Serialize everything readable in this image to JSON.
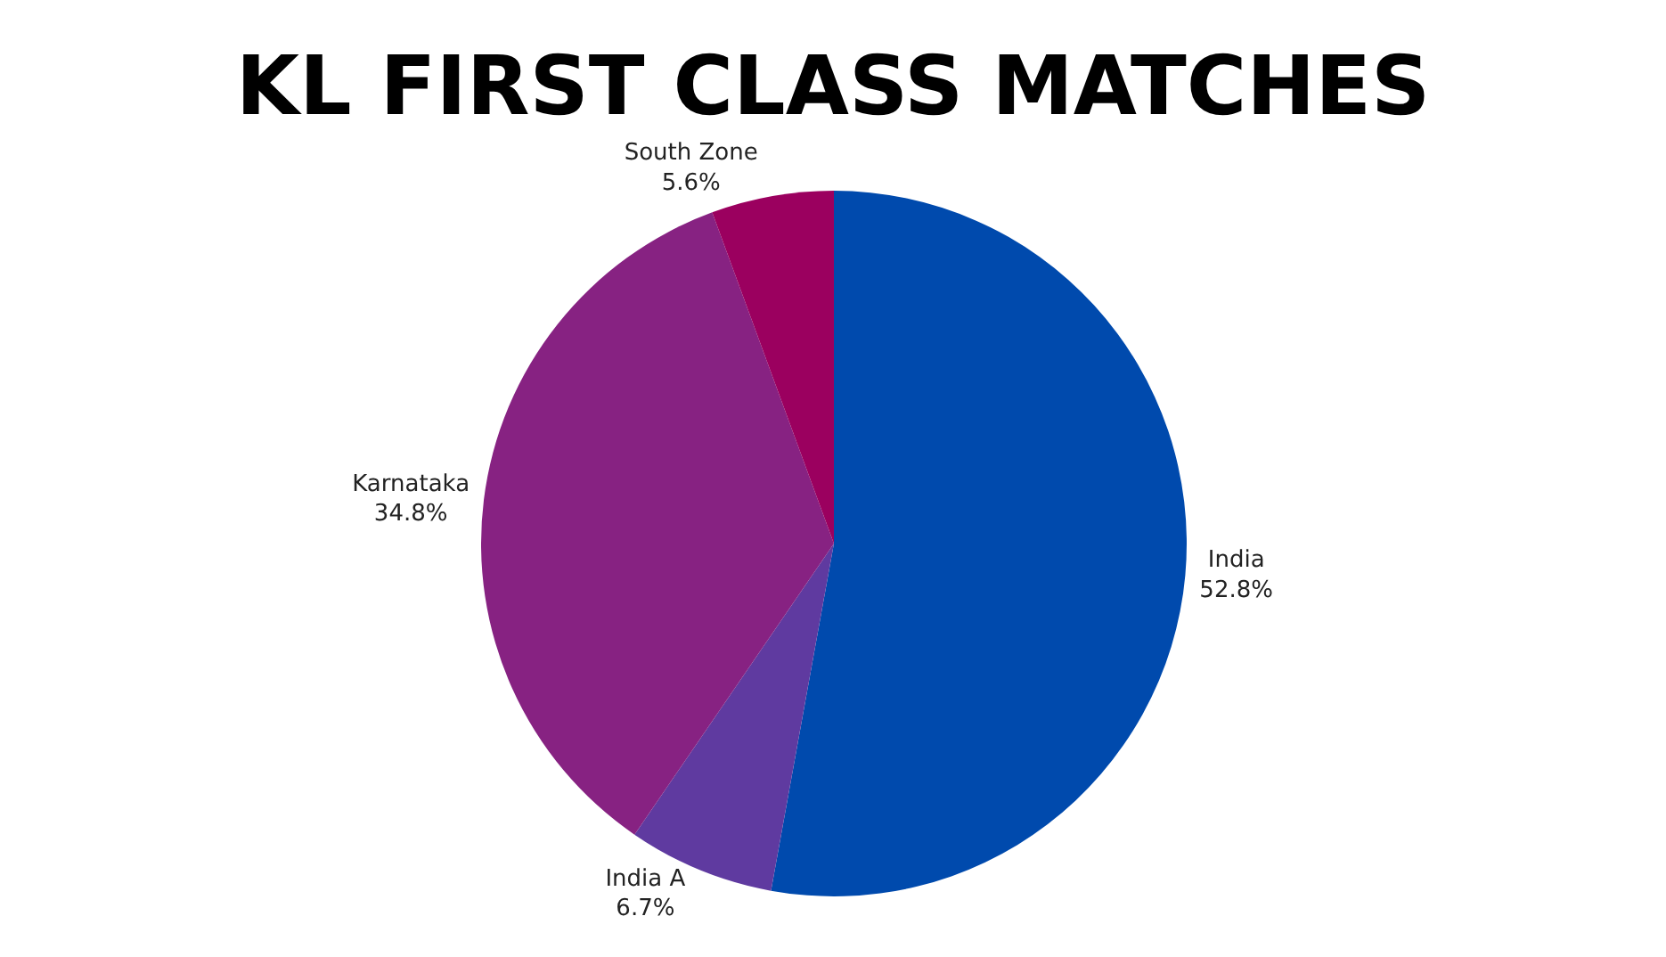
{
  "chart_data": {
    "type": "pie",
    "title": "KL FIRST CLASS MATCHES",
    "categories": [
      "India",
      "India A",
      "Karnataka",
      "South Zone"
    ],
    "values": [
      52.8,
      6.7,
      34.8,
      5.6
    ],
    "value_labels": [
      "52.8%",
      "6.7%",
      "34.8%",
      "5.6%"
    ],
    "colors": [
      "#004aad",
      "#5f3aa0",
      "#872282",
      "#9b005f"
    ]
  }
}
